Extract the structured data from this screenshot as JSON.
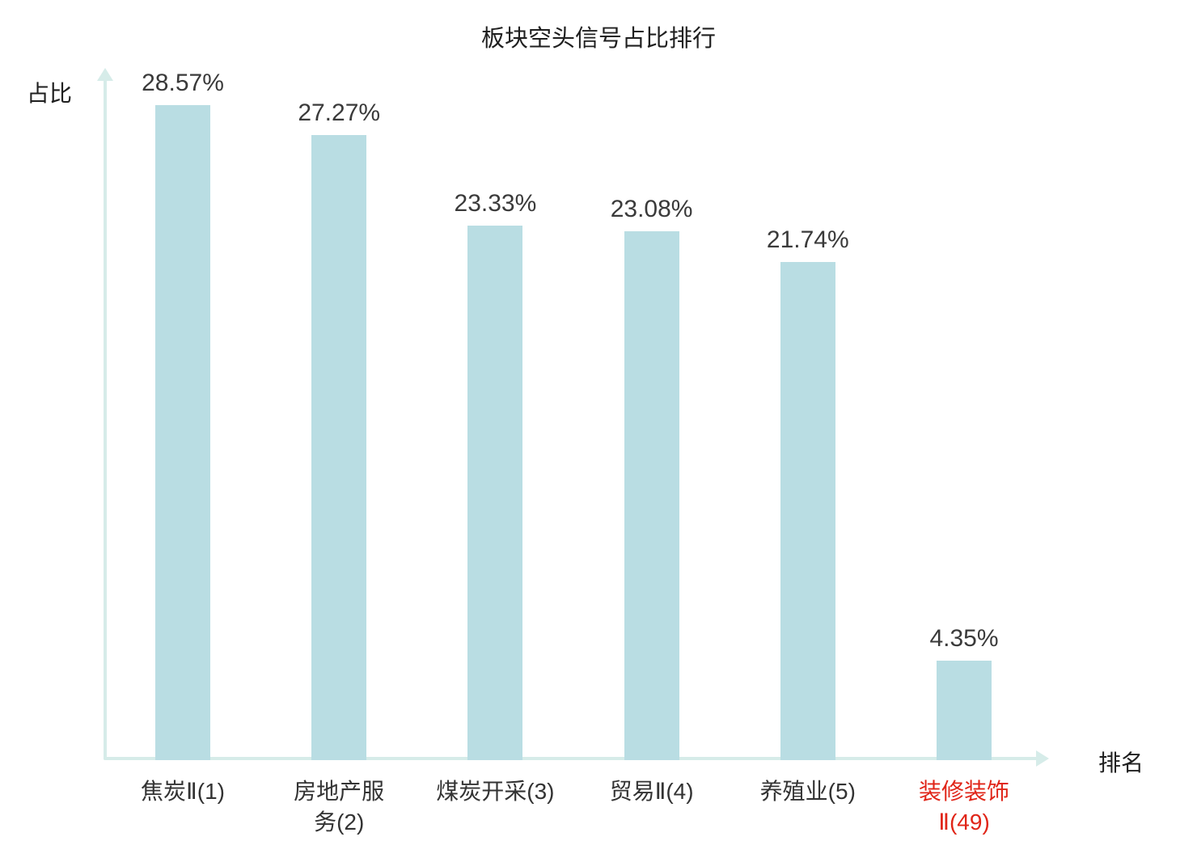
{
  "chart_data": {
    "type": "bar",
    "title": "板块空头信号占比排行",
    "ylabel": "占比",
    "xlabel": "排名",
    "categories": [
      "焦炭Ⅱ(1)",
      "房地产服\n务(2)",
      "煤炭开采(3)",
      "贸易Ⅱ(4)",
      "养殖业(5)",
      "装修装饰\nⅡ(49)"
    ],
    "values": [
      28.57,
      27.27,
      23.33,
      23.08,
      21.74,
      4.35
    ],
    "value_labels": [
      "28.57%",
      "27.27%",
      "23.33%",
      "23.08%",
      "21.74%",
      "4.35%"
    ],
    "category_label_colors": [
      "#333333",
      "#333333",
      "#333333",
      "#333333",
      "#333333",
      "#e02518"
    ],
    "bar_color": "#b9dde3",
    "axis_color": "#d6ece9",
    "ylim": [
      0,
      30
    ],
    "grid": false,
    "legend": false
  }
}
